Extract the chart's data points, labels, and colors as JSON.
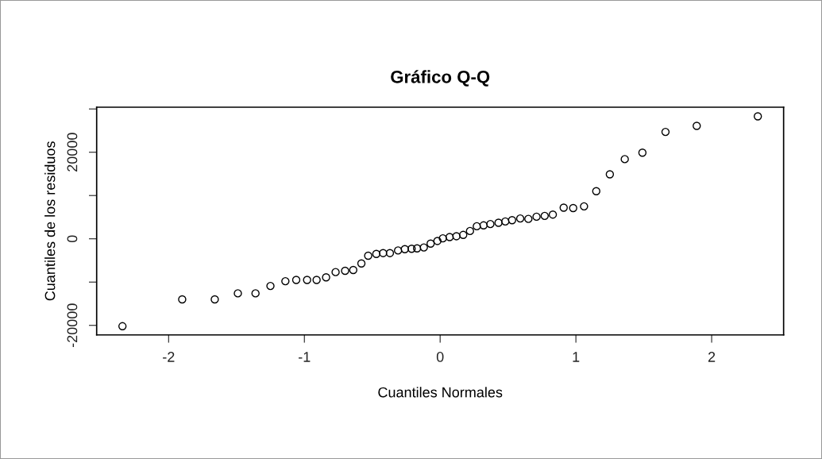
{
  "chart_data": {
    "type": "scatter",
    "title": "Gráfico Q-Q",
    "xlabel": "Cuantiles Normales",
    "ylabel": "Cuantiles de los residuos",
    "x": [
      -2.34,
      -1.9,
      -1.66,
      -1.49,
      -1.36,
      -1.25,
      -1.14,
      -1.06,
      -0.98,
      -0.91,
      -0.84,
      -0.77,
      -0.7,
      -0.64,
      -0.58,
      -0.53,
      -0.47,
      -0.42,
      -0.37,
      -0.31,
      -0.26,
      -0.21,
      -0.17,
      -0.12,
      -0.07,
      -0.02,
      0.02,
      0.07,
      0.12,
      0.17,
      0.22,
      0.27,
      0.32,
      0.37,
      0.43,
      0.48,
      0.53,
      0.59,
      0.65,
      0.71,
      0.77,
      0.83,
      0.91,
      0.98,
      1.06,
      1.15,
      1.25,
      1.36,
      1.49,
      1.66,
      1.89,
      2.34
    ],
    "values": [
      -20200,
      -14000,
      -14000,
      -12600,
      -12600,
      -10900,
      -9800,
      -9500,
      -9500,
      -9500,
      -8900,
      -7700,
      -7400,
      -7200,
      -5700,
      -3900,
      -3500,
      -3300,
      -3300,
      -2700,
      -2400,
      -2300,
      -2200,
      -2000,
      -1100,
      -500,
      100,
      400,
      600,
      900,
      1800,
      2900,
      3100,
      3400,
      3700,
      4000,
      4300,
      4700,
      4600,
      5100,
      5300,
      5600,
      7200,
      7100,
      7500,
      11000,
      14900,
      18400,
      19900,
      24700,
      26100,
      28300
    ],
    "color": "#000000",
    "marker": "circle",
    "xlim": [
      -2.53,
      2.53
    ],
    "ylim": [
      -22200,
      30400
    ],
    "xticks": [
      -2,
      -1,
      0,
      1,
      2
    ],
    "yticks": [
      -20000,
      {
        "value": -10000,
        "label": null
      },
      0,
      {
        "value": 10000,
        "label": null
      },
      20000,
      {
        "value": 30000,
        "label": null
      }
    ],
    "grid": false
  }
}
